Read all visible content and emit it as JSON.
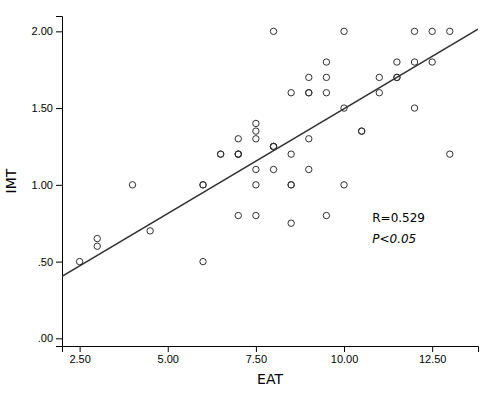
{
  "chart_data": {
    "type": "scatter",
    "xlabel": "EAT",
    "ylabel": "IMT",
    "xlim": [
      2.0,
      13.8
    ],
    "ylim": [
      -0.05,
      2.1
    ],
    "xticks": [
      {
        "value": 2.5,
        "label": "2.50"
      },
      {
        "value": 5.0,
        "label": "5.00"
      },
      {
        "value": 7.5,
        "label": "7.50"
      },
      {
        "value": 10.0,
        "label": "10.00"
      },
      {
        "value": 12.5,
        "label": "12.50"
      }
    ],
    "yticks": [
      {
        "value": 0.0,
        "label": ".00"
      },
      {
        "value": 0.5,
        "label": ".50"
      },
      {
        "value": 1.0,
        "label": "1.00"
      },
      {
        "value": 1.5,
        "label": "1.50"
      },
      {
        "value": 2.0,
        "label": "2.00"
      }
    ],
    "series": [
      {
        "type": "scatter",
        "marker": "circle-open",
        "color": "#303030",
        "x": [
          2.5,
          3.0,
          3.0,
          4.0,
          4.5,
          6.0,
          6.0,
          6.0,
          6.5,
          6.5,
          7.0,
          7.0,
          7.0,
          7.0,
          7.0,
          7.5,
          7.5,
          7.5,
          7.5,
          7.5,
          7.5,
          8.0,
          8.0,
          8.0,
          8.0,
          8.0,
          8.5,
          8.5,
          8.5,
          8.5,
          8.5,
          9.0,
          9.0,
          9.0,
          9.0,
          9.0,
          9.5,
          9.5,
          9.5,
          9.5,
          10.0,
          10.0,
          10.0,
          10.5,
          10.5,
          11.0,
          11.0,
          11.5,
          11.5,
          11.5,
          12.0,
          12.0,
          12.0,
          12.5,
          12.5,
          13.0,
          13.0
        ],
        "values": [
          0.5,
          0.6,
          0.65,
          1.0,
          0.7,
          0.5,
          1.0,
          1.0,
          1.2,
          1.2,
          1.2,
          1.2,
          1.2,
          1.3,
          0.8,
          1.3,
          1.35,
          1.4,
          1.1,
          1.0,
          0.8,
          1.25,
          1.25,
          1.25,
          1.1,
          2.0,
          1.6,
          1.0,
          1.0,
          0.75,
          1.2,
          1.6,
          1.6,
          1.7,
          1.3,
          1.1,
          1.6,
          1.7,
          1.8,
          0.8,
          1.0,
          2.0,
          1.5,
          1.35,
          1.35,
          1.7,
          1.6,
          1.7,
          1.7,
          1.8,
          1.8,
          2.0,
          1.5,
          2.0,
          1.8,
          2.0,
          1.2
        ]
      },
      {
        "type": "line",
        "line_style": "solid",
        "color": "#303030",
        "x": [
          2.0,
          13.8
        ],
        "values": [
          0.403,
          2.0137
        ]
      }
    ],
    "annotations": [
      {
        "text": "R=0.529",
        "x": 10.8,
        "y": 0.76
      },
      {
        "text": "P<0.05",
        "x": 10.8,
        "y": 0.62
      }
    ]
  }
}
